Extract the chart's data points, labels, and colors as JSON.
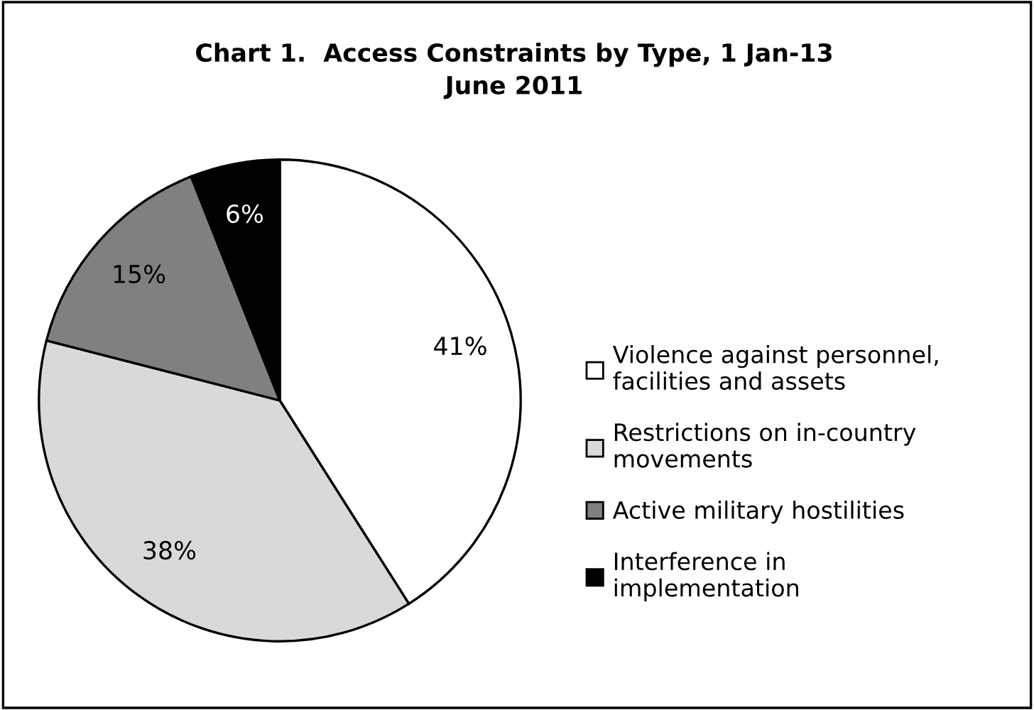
{
  "chart_data": {
    "type": "pie",
    "title": "Chart 1.  Access Constraints by Type, 1 Jan-13\nJune 2011",
    "categories": [
      "Violence against personnel,\nfacilities and assets",
      "Restrictions on in-country\nmovements",
      "Active military hostilities",
      "Interference in\nimplementation"
    ],
    "values": [
      41,
      38,
      15,
      6
    ],
    "colors": [
      "#ffffff",
      "#d9d9d9",
      "#808080",
      "#000000"
    ],
    "value_labels": [
      "41%",
      "38%",
      "15%",
      "6%"
    ],
    "legend": "right"
  }
}
